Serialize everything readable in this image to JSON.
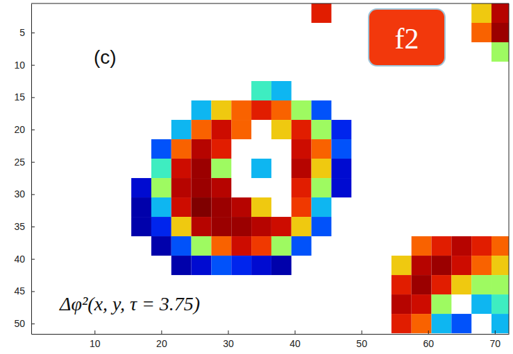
{
  "chart_data": {
    "type": "heatmap",
    "annotations": [
      "(c)",
      "Δφ²(x, y, τ = 3.75)",
      "f2"
    ],
    "xlim": [
      0.5,
      72.1
    ],
    "ylim": [
      0.5,
      51.6
    ],
    "xticks": [
      10,
      20,
      30,
      40,
      50,
      60,
      70
    ],
    "yticks": [
      5,
      10,
      15,
      20,
      25,
      30,
      35,
      40,
      45,
      50
    ],
    "zlim": [
      0,
      1
    ],
    "x": [
      2,
      5,
      8,
      11,
      14,
      17,
      20,
      23,
      26,
      29,
      32,
      35,
      38,
      41,
      44,
      47,
      50,
      53,
      56,
      59,
      62,
      65,
      68,
      71
    ],
    "y": [
      2,
      5,
      8,
      11,
      14,
      17,
      20,
      23,
      26,
      29,
      32,
      35,
      38,
      41,
      44,
      47,
      50
    ],
    "z": [
      [
        null,
        null,
        null,
        null,
        null,
        null,
        null,
        null,
        null,
        null,
        null,
        null,
        null,
        null,
        0.8,
        null,
        null,
        null,
        null,
        null,
        null,
        null,
        0.6,
        0.9
      ],
      [
        null,
        null,
        null,
        null,
        null,
        null,
        null,
        null,
        null,
        null,
        null,
        null,
        null,
        null,
        null,
        null,
        null,
        null,
        null,
        null,
        null,
        null,
        0.7,
        0.95
      ],
      [
        null,
        null,
        null,
        null,
        null,
        null,
        null,
        null,
        null,
        null,
        null,
        null,
        null,
        null,
        null,
        null,
        null,
        null,
        null,
        null,
        null,
        null,
        null,
        0.5
      ],
      [
        null,
        null,
        null,
        null,
        null,
        null,
        null,
        null,
        null,
        null,
        null,
        null,
        null,
        null,
        null,
        null,
        null,
        null,
        null,
        null,
        null,
        null,
        null,
        null
      ],
      [
        null,
        null,
        null,
        null,
        null,
        null,
        null,
        null,
        null,
        null,
        null,
        0.4,
        0.3,
        null,
        null,
        null,
        null,
        null,
        null,
        null,
        null,
        null,
        null,
        null
      ],
      [
        null,
        null,
        null,
        null,
        null,
        null,
        null,
        null,
        0.3,
        0.6,
        0.7,
        0.8,
        0.7,
        0.5,
        0.2,
        null,
        null,
        null,
        null,
        null,
        null,
        null,
        null,
        null
      ],
      [
        null,
        null,
        null,
        null,
        null,
        null,
        null,
        0.3,
        0.7,
        0.85,
        0.7,
        null,
        0.6,
        0.8,
        0.5,
        0.15,
        null,
        null,
        null,
        null,
        null,
        null,
        null,
        null
      ],
      [
        null,
        null,
        null,
        null,
        null,
        null,
        0.2,
        0.7,
        0.9,
        0.8,
        null,
        null,
        null,
        0.85,
        0.7,
        0.2,
        null,
        null,
        null,
        null,
        null,
        null,
        null,
        null
      ],
      [
        null,
        null,
        null,
        null,
        null,
        null,
        0.4,
        0.85,
        0.95,
        0.5,
        null,
        0.3,
        null,
        0.9,
        0.6,
        0.1,
        null,
        null,
        null,
        null,
        null,
        null,
        null,
        null
      ],
      [
        null,
        null,
        null,
        null,
        null,
        0.1,
        0.5,
        0.9,
        0.95,
        0.9,
        null,
        null,
        null,
        0.8,
        0.5,
        0.1,
        null,
        null,
        null,
        null,
        null,
        null,
        null,
        null
      ],
      [
        null,
        null,
        null,
        null,
        null,
        0.05,
        0.3,
        0.85,
        1,
        0.95,
        0.9,
        0.6,
        null,
        0.75,
        0.3,
        null,
        null,
        null,
        null,
        null,
        null,
        null,
        null,
        null
      ],
      [
        null,
        null,
        null,
        null,
        null,
        0.05,
        0.15,
        0.6,
        0.9,
        0.95,
        0.95,
        0.9,
        0.85,
        0.6,
        0.2,
        null,
        null,
        null,
        null,
        null,
        null,
        null,
        null,
        null
      ],
      [
        null,
        null,
        null,
        null,
        null,
        null,
        0.05,
        0.2,
        0.5,
        0.7,
        0.85,
        0.75,
        0.5,
        0.2,
        null,
        null,
        null,
        null,
        null,
        0.7,
        0.8,
        0.9,
        0.8,
        0.7
      ],
      [
        null,
        null,
        null,
        null,
        null,
        null,
        null,
        0.05,
        0.1,
        0.2,
        0.15,
        0.1,
        0.05,
        null,
        null,
        null,
        null,
        null,
        0.6,
        0.9,
        0.95,
        0.85,
        0.7,
        0.6
      ],
      [
        null,
        null,
        null,
        null,
        null,
        null,
        null,
        null,
        null,
        null,
        null,
        null,
        null,
        null,
        null,
        null,
        null,
        null,
        0.8,
        0.95,
        0.8,
        0.6,
        0.5,
        0.5
      ],
      [
        null,
        null,
        null,
        null,
        null,
        null,
        null,
        null,
        null,
        null,
        null,
        null,
        null,
        null,
        null,
        null,
        null,
        null,
        0.9,
        0.85,
        0.5,
        null,
        0.3,
        0.4
      ],
      [
        null,
        null,
        null,
        null,
        null,
        null,
        null,
        null,
        null,
        null,
        null,
        null,
        null,
        null,
        null,
        null,
        null,
        null,
        0.8,
        0.7,
        0.3,
        0.2,
        null,
        0.3
      ]
    ]
  }
}
